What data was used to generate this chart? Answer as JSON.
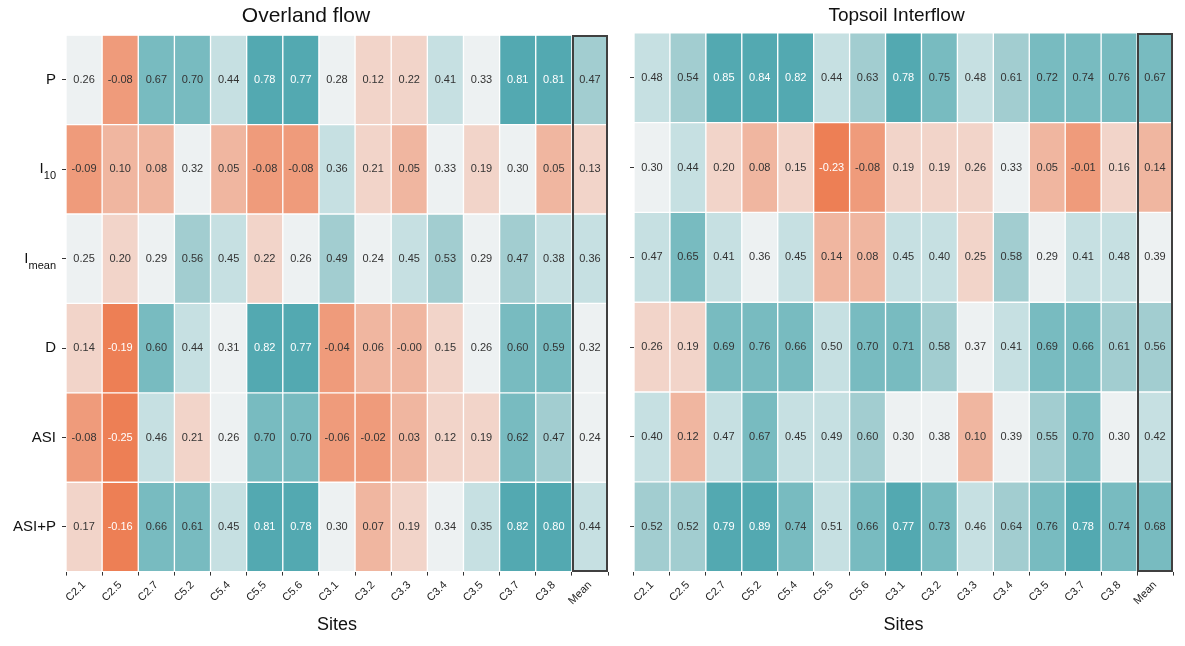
{
  "chart_data": [
    {
      "type": "heatmap",
      "title": "Overland flow",
      "xlabel": "Sites",
      "grid": false,
      "categories": [
        "C2.1",
        "C2.5",
        "C2.7",
        "C5.2",
        "C5.4",
        "C5.5",
        "C5.6",
        "C3.1",
        "C3.2",
        "C3.3",
        "C3.4",
        "C3.5",
        "C3.7",
        "C3.8",
        "Mean"
      ],
      "y_categories": [
        "P",
        "I$_{10}$",
        "I$_{mean}$",
        "D",
        "ASI",
        "ASI+P"
      ],
      "cells": [
        [
          0.26,
          -0.08,
          0.67,
          0.7,
          0.44,
          0.78,
          0.77,
          0.28,
          0.12,
          0.22,
          0.41,
          0.33,
          0.81,
          0.81,
          0.47
        ],
        [
          -0.09,
          0.1,
          0.08,
          0.32,
          0.05,
          -0.08,
          -0.08,
          0.36,
          0.21,
          0.05,
          0.33,
          0.19,
          0.3,
          0.05,
          0.13
        ],
        [
          0.25,
          0.2,
          0.29,
          0.56,
          0.45,
          0.22,
          0.26,
          0.49,
          0.24,
          0.45,
          0.53,
          0.29,
          0.47,
          0.38,
          0.36
        ],
        [
          0.14,
          -0.19,
          0.6,
          0.44,
          0.31,
          0.82,
          0.77,
          -0.04,
          0.06,
          -0.0,
          0.15,
          0.26,
          0.6,
          0.59,
          0.32
        ],
        [
          -0.08,
          -0.25,
          0.46,
          0.21,
          0.26,
          0.7,
          0.7,
          -0.06,
          -0.02,
          0.03,
          0.12,
          0.19,
          0.62,
          0.47,
          0.24
        ],
        [
          0.17,
          -0.16,
          0.66,
          0.61,
          0.45,
          0.81,
          0.78,
          0.3,
          0.07,
          0.19,
          0.34,
          0.35,
          0.82,
          0.8,
          0.44
        ]
      ],
      "cell_labels": [
        [
          "0.26",
          "-0.08",
          "0.67",
          "0.70",
          "0.44",
          "0.78",
          "0.77",
          "0.28",
          "0.12",
          "0.22",
          "0.41",
          "0.33",
          "0.81",
          "0.81",
          "0.47"
        ],
        [
          "-0.09",
          "0.10",
          "0.08",
          "0.32",
          "0.05",
          "-0.08",
          "-0.08",
          "0.36",
          "0.21",
          "0.05",
          "0.33",
          "0.19",
          "0.30",
          "0.05",
          "0.13"
        ],
        [
          "0.25",
          "0.20",
          "0.29",
          "0.56",
          "0.45",
          "0.22",
          "0.26",
          "0.49",
          "0.24",
          "0.45",
          "0.53",
          "0.29",
          "0.47",
          "0.38",
          "0.36"
        ],
        [
          "0.14",
          "-0.19",
          "0.60",
          "0.44",
          "0.31",
          "0.82",
          "0.77",
          "-0.04",
          "0.06",
          "-0.00",
          "0.15",
          "0.26",
          "0.60",
          "0.59",
          "0.32"
        ],
        [
          "-0.08",
          "-0.25",
          "0.46",
          "0.21",
          "0.26",
          "0.70",
          "0.70",
          "-0.06",
          "-0.02",
          "0.03",
          "0.12",
          "0.19",
          "0.62",
          "0.47",
          "0.24"
        ],
        [
          "0.17",
          "-0.16",
          "0.66",
          "0.61",
          "0.45",
          "0.81",
          "0.78",
          "0.30",
          "0.07",
          "0.19",
          "0.34",
          "0.35",
          "0.82",
          "0.80",
          "0.44"
        ]
      ]
    },
    {
      "type": "heatmap",
      "title": "Topsoil Interflow",
      "xlabel": "Sites",
      "grid": false,
      "tick_labels": "x",
      "categories": [
        "C2.1",
        "C2.5",
        "C2.7",
        "C5.2",
        "C5.4",
        "C5.5",
        "C5.6",
        "C3.1",
        "C3.2",
        "C3.3",
        "C3.4",
        "C3.5",
        "C3.7",
        "C3.8",
        "Mean"
      ],
      "y_categories": [
        null,
        null,
        null,
        null,
        null,
        null
      ],
      "cells": [
        [
          0.48,
          0.54,
          0.85,
          0.84,
          0.82,
          0.44,
          0.63,
          0.78,
          0.75,
          0.48,
          0.61,
          0.72,
          0.74,
          0.76,
          0.67
        ],
        [
          0.3,
          0.44,
          0.2,
          0.08,
          0.15,
          -0.23,
          -0.08,
          0.19,
          0.19,
          0.26,
          0.33,
          0.05,
          -0.01,
          0.16,
          0.14
        ],
        [
          0.47,
          0.65,
          0.41,
          0.36,
          0.45,
          0.14,
          0.08,
          0.45,
          0.4,
          0.25,
          0.58,
          0.29,
          0.41,
          0.48,
          0.39
        ],
        [
          0.26,
          0.19,
          0.69,
          0.76,
          0.66,
          0.5,
          0.7,
          0.71,
          0.58,
          0.37,
          0.41,
          0.69,
          0.66,
          0.61,
          0.56
        ],
        [
          0.4,
          0.12,
          0.47,
          0.67,
          0.45,
          0.49,
          0.6,
          0.3,
          0.38,
          0.1,
          0.39,
          0.55,
          0.7,
          0.3,
          0.42
        ],
        [
          0.52,
          0.52,
          0.79,
          0.89,
          0.74,
          0.51,
          0.66,
          0.77,
          0.73,
          0.46,
          0.64,
          0.76,
          0.78,
          0.74,
          0.68
        ]
      ],
      "cell_labels": [
        [
          "0.48",
          "0.54",
          "0.85",
          "0.84",
          "0.82",
          "0.44",
          "0.63",
          "0.78",
          "0.75",
          "0.48",
          "0.61",
          "0.72",
          "0.74",
          "0.76",
          "0.67"
        ],
        [
          "0.30",
          "0.44",
          "0.20",
          "0.08",
          "0.15",
          "-0.23",
          "-0.08",
          "0.19",
          "0.19",
          "0.26",
          "0.33",
          "0.05",
          "-0.01",
          "0.16",
          "0.14"
        ],
        [
          "0.47",
          "0.65",
          "0.41",
          "0.36",
          "0.45",
          "0.14",
          "0.08",
          "0.45",
          "0.40",
          "0.25",
          "0.58",
          "0.29",
          "0.41",
          "0.48",
          "0.39"
        ],
        [
          "0.26",
          "0.19",
          "0.69",
          "0.76",
          "0.66",
          "0.50",
          "0.70",
          "0.71",
          "0.58",
          "0.37",
          "0.41",
          "0.69",
          "0.66",
          "0.61",
          "0.56"
        ],
        [
          "0.40",
          "0.12",
          "0.47",
          "0.67",
          "0.45",
          "0.49",
          "0.60",
          "0.30",
          "0.38",
          "0.10",
          "0.39",
          "0.55",
          "0.70",
          "0.30",
          "0.42"
        ],
        [
          "0.52",
          "0.52",
          "0.79",
          "0.89",
          "0.74",
          "0.51",
          "0.66",
          "0.77",
          "0.73",
          "0.46",
          "0.64",
          "0.76",
          "0.78",
          "0.74",
          "0.68"
        ]
      ]
    }
  ]
}
